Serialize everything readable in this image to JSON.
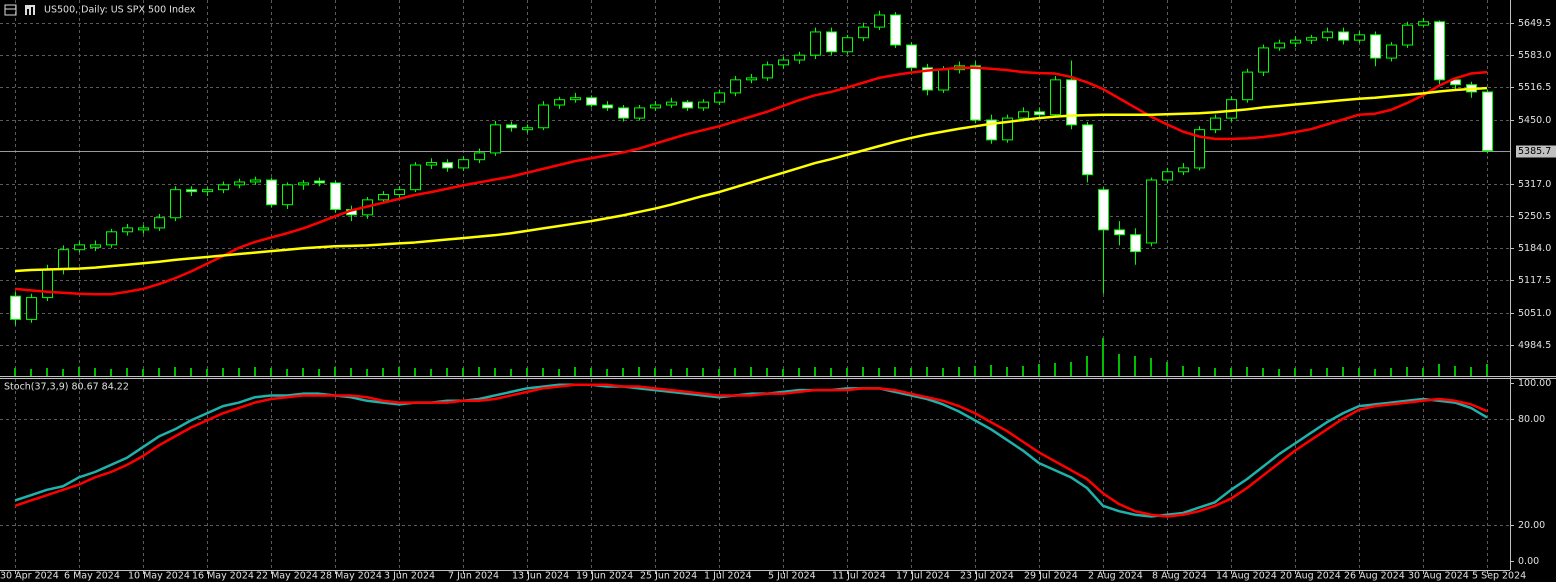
{
  "chart_data": [
    {
      "type": "candlestick",
      "title": "US500, Daily: US SPX 500 Index",
      "categories": [
        "30 Apr 2024",
        null,
        null,
        null,
        "6 May 2024",
        null,
        null,
        null,
        "10 May 2024",
        null,
        null,
        null,
        "16 May 2024",
        null,
        null,
        null,
        "22 May 2024",
        null,
        null,
        null,
        "28 May 2024",
        null,
        null,
        null,
        "3 Jun 2024",
        null,
        null,
        null,
        "7 Jun 2024",
        null,
        null,
        null,
        "13 Jun 2024",
        null,
        null,
        null,
        "19 Jun 2024",
        null,
        null,
        null,
        "25 Jun 2024",
        null,
        null,
        null,
        "1 Jul 2024",
        null,
        null,
        null,
        "5 Jul 2024",
        null,
        null,
        null,
        "11 Jul 2024",
        null,
        null,
        null,
        "17 Jul 2024",
        null,
        null,
        null,
        "23 Jul 2024",
        null,
        null,
        null,
        "29 Jul 2024",
        null,
        null,
        null,
        "2 Aug 2024",
        null,
        null,
        null,
        "8 Aug 2024",
        null,
        null,
        null,
        "14 Aug 2024",
        null,
        null,
        null,
        "20 Aug 2024",
        null,
        null,
        null,
        "26 Aug 2024",
        null,
        null,
        null,
        "30 Aug 2024",
        null,
        null,
        null,
        "5 Sep 2024"
      ],
      "open": [
        5085,
        5037,
        5082,
        5140,
        5181,
        5186,
        5191,
        5218,
        5222,
        5226,
        5247,
        5305,
        5301,
        5305,
        5315,
        5321,
        5325,
        5274,
        5315,
        5323,
        5319,
        5264,
        5253,
        5284,
        5295,
        5305,
        5356,
        5361,
        5350,
        5367,
        5381,
        5439,
        5429,
        5433,
        5480,
        5491,
        5495,
        5480,
        5474,
        5453,
        5474,
        5480,
        5486,
        5474,
        5486,
        5505,
        5532,
        5536,
        5563,
        5573,
        5583,
        5631,
        5590,
        5619,
        5641,
        5666,
        5604,
        5557,
        5511,
        5553,
        5561,
        5449,
        5408,
        5453,
        5466,
        5460,
        5532,
        5439,
        5305,
        5222,
        5212,
        5195,
        5325,
        5342,
        5350,
        5429,
        5453,
        5491,
        5548,
        5598,
        5608,
        5614,
        5619,
        5631,
        5614,
        5625,
        5577,
        5604,
        5645,
        5652,
        5532,
        5522,
        5507
      ],
      "high": [
        5095,
        5090,
        5150,
        5190,
        5198,
        5200,
        5224,
        5234,
        5232,
        5255,
        5312,
        5312,
        5310,
        5322,
        5328,
        5332,
        5330,
        5320,
        5325,
        5330,
        5324,
        5272,
        5290,
        5302,
        5312,
        5362,
        5370,
        5368,
        5374,
        5390,
        5447,
        5446,
        5440,
        5488,
        5497,
        5505,
        5500,
        5488,
        5480,
        5480,
        5488,
        5495,
        5490,
        5492,
        5512,
        5540,
        5544,
        5570,
        5580,
        5590,
        5640,
        5640,
        5625,
        5650,
        5675,
        5672,
        5610,
        5565,
        5560,
        5570,
        5570,
        5460,
        5460,
        5475,
        5475,
        5540,
        5572,
        5445,
        5310,
        5240,
        5225,
        5330,
        5350,
        5360,
        5436,
        5460,
        5498,
        5555,
        5605,
        5615,
        5622,
        5625,
        5640,
        5640,
        5632,
        5632,
        5610,
        5652,
        5660,
        5655,
        5535,
        5528,
        5512
      ],
      "low": [
        5025,
        5030,
        5075,
        5130,
        5175,
        5178,
        5185,
        5210,
        5214,
        5220,
        5240,
        5292,
        5292,
        5298,
        5308,
        5315,
        5268,
        5265,
        5305,
        5312,
        5258,
        5240,
        5245,
        5278,
        5288,
        5300,
        5348,
        5342,
        5344,
        5360,
        5375,
        5425,
        5422,
        5428,
        5472,
        5485,
        5475,
        5468,
        5446,
        5448,
        5468,
        5474,
        5468,
        5468,
        5480,
        5498,
        5525,
        5530,
        5555,
        5565,
        5575,
        5582,
        5585,
        5612,
        5635,
        5598,
        5550,
        5500,
        5505,
        5545,
        5442,
        5400,
        5402,
        5446,
        5452,
        5455,
        5430,
        5320,
        5090,
        5190,
        5150,
        5188,
        5318,
        5335,
        5345,
        5422,
        5446,
        5485,
        5540,
        5592,
        5600,
        5606,
        5612,
        5605,
        5608,
        5560,
        5570,
        5598,
        5640,
        5520,
        5510,
        5495,
        5380
      ],
      "close": [
        5037,
        5082,
        5140,
        5181,
        5191,
        5191,
        5218,
        5226,
        5226,
        5247,
        5305,
        5301,
        5305,
        5315,
        5321,
        5325,
        5274,
        5315,
        5319,
        5319,
        5264,
        5253,
        5284,
        5295,
        5305,
        5356,
        5361,
        5350,
        5367,
        5381,
        5439,
        5433,
        5433,
        5480,
        5491,
        5495,
        5480,
        5474,
        5453,
        5474,
        5480,
        5486,
        5474,
        5486,
        5505,
        5532,
        5536,
        5563,
        5573,
        5583,
        5631,
        5590,
        5619,
        5641,
        5666,
        5604,
        5557,
        5511,
        5553,
        5561,
        5449,
        5408,
        5453,
        5466,
        5460,
        5532,
        5439,
        5336,
        5222,
        5212,
        5177,
        5325,
        5342,
        5350,
        5429,
        5453,
        5491,
        5548,
        5598,
        5608,
        5614,
        5619,
        5631,
        5614,
        5625,
        5577,
        5604,
        5645,
        5652,
        5532,
        5522,
        5507,
        5385.7
      ],
      "volume": [
        8,
        7,
        8,
        7,
        9,
        8,
        7,
        8,
        7,
        8,
        9,
        8,
        7,
        8,
        8,
        9,
        8,
        7,
        8,
        7,
        9,
        8,
        7,
        8,
        9,
        8,
        7,
        8,
        8,
        9,
        8,
        7,
        8,
        8,
        7,
        9,
        8,
        7,
        8,
        9,
        8,
        7,
        8,
        8,
        7,
        8,
        9,
        8,
        7,
        8,
        9,
        8,
        8,
        9,
        8,
        9,
        8,
        9,
        8,
        9,
        10,
        11,
        9,
        10,
        12,
        13,
        14,
        20,
        38,
        22,
        20,
        18,
        14,
        10,
        9,
        8,
        8,
        9,
        8,
        7,
        8,
        7,
        8,
        9,
        8,
        7,
        8,
        9,
        8,
        12,
        10,
        9,
        12
      ],
      "vlim": [
        0,
        100
      ],
      "lines": [
        {
          "color": "#ff0000",
          "values": [
            5100,
            5097,
            5094,
            5092,
            5090,
            5089,
            5089,
            5094,
            5100,
            5110,
            5122,
            5136,
            5152,
            5168,
            5185,
            5197,
            5206,
            5215,
            5225,
            5237,
            5250,
            5262,
            5270,
            5278,
            5286,
            5294,
            5300,
            5307,
            5314,
            5320,
            5326,
            5332,
            5340,
            5348,
            5356,
            5364,
            5370,
            5376,
            5382,
            5390,
            5400,
            5410,
            5420,
            5428,
            5436,
            5446,
            5456,
            5466,
            5478,
            5490,
            5500,
            5507,
            5516,
            5526,
            5536,
            5542,
            5547,
            5551,
            5554,
            5557,
            5557,
            5555,
            5552,
            5548,
            5546,
            5545,
            5538,
            5527,
            5513,
            5494,
            5475,
            5456,
            5440,
            5425,
            5415,
            5410,
            5410,
            5411,
            5414,
            5418,
            5424,
            5430,
            5440,
            5450,
            5460,
            5462,
            5470,
            5484,
            5500,
            5520,
            5535,
            5545,
            5548
          ]
        },
        {
          "color": "#ffff00",
          "values": [
            5137,
            5139,
            5140,
            5141,
            5142,
            5144,
            5147,
            5150,
            5153,
            5156,
            5160,
            5163,
            5166,
            5169,
            5172,
            5175,
            5178,
            5181,
            5184,
            5186,
            5188,
            5189,
            5190,
            5192,
            5194,
            5196,
            5199,
            5202,
            5205,
            5208,
            5211,
            5215,
            5220,
            5225,
            5230,
            5235,
            5240,
            5246,
            5252,
            5259,
            5266,
            5274,
            5283,
            5292,
            5300,
            5310,
            5320,
            5330,
            5340,
            5350,
            5360,
            5368,
            5377,
            5386,
            5395,
            5404,
            5412,
            5419,
            5425,
            5431,
            5436,
            5441,
            5445,
            5449,
            5453,
            5456,
            5458,
            5459,
            5460,
            5460,
            5460,
            5460,
            5461,
            5462,
            5463,
            5465,
            5468,
            5471,
            5475,
            5478,
            5481,
            5484,
            5487,
            5490,
            5493,
            5495,
            5498,
            5501,
            5504,
            5508,
            5511,
            5513,
            5515
          ]
        }
      ],
      "candle_color": "#00ff00",
      "volume_color": "#00c000",
      "ylim": [
        4920,
        5697
      ],
      "yticks": [
        4984.5,
        {
          "value": 5051,
          "label": "5051.0"
        },
        5117.5,
        {
          "value": 5184,
          "label": "5184.0"
        },
        5250.5,
        {
          "value": 5317,
          "label": "5317.0"
        },
        {
          "value": 5450,
          "label": "5450.0"
        },
        5516.5,
        {
          "value": 5583,
          "label": "5583.0"
        },
        5649.5
      ],
      "grid": true
    },
    {
      "type": "line",
      "title": "Stoch(37,3,9) 80.67 84.22",
      "series": [
        {
          "color": "#20b2aa",
          "values": [
            34,
            37,
            40,
            42,
            47,
            50,
            54,
            58,
            64,
            70,
            74,
            79,
            83,
            87,
            89,
            92,
            93,
            93,
            94,
            94,
            93,
            92,
            90,
            89,
            88,
            89,
            89,
            90,
            90,
            91,
            93,
            95,
            97,
            98,
            99,
            99,
            99,
            98,
            98,
            97,
            96,
            95,
            94,
            93,
            92,
            93,
            94,
            94,
            95,
            96,
            96,
            96,
            97,
            97,
            97,
            95,
            93,
            91,
            88,
            84,
            79,
            74,
            68,
            62,
            55,
            51,
            47,
            41,
            31,
            28,
            26,
            25,
            26,
            27,
            30,
            33,
            40,
            46,
            53,
            60,
            66,
            72,
            78,
            83,
            87,
            88,
            89,
            90,
            91,
            90,
            89,
            86,
            80.67
          ]
        },
        {
          "color": "#ff0000",
          "values": [
            31,
            34,
            37,
            40,
            43,
            47,
            50,
            54,
            59,
            65,
            70,
            75,
            79,
            83,
            86,
            89,
            91,
            92,
            93,
            93,
            93,
            93,
            92,
            90,
            89,
            89,
            89,
            89,
            90,
            90,
            91,
            93,
            95,
            97,
            98,
            99,
            99,
            99,
            98,
            98,
            97,
            96,
            95,
            94,
            93,
            93,
            93,
            94,
            94,
            95,
            96,
            96,
            96,
            97,
            97,
            96,
            94,
            92,
            90,
            87,
            83,
            78,
            73,
            67,
            61,
            56,
            51,
            46,
            38,
            32,
            28,
            26,
            25,
            26,
            28,
            31,
            35,
            41,
            48,
            55,
            62,
            68,
            74,
            80,
            85,
            87,
            88,
            89,
            90,
            91,
            90,
            88,
            84.22
          ]
        }
      ],
      "ylim": [
        0,
        100
      ],
      "yticks": [
        {
          "value": 0,
          "label": "0.00"
        },
        {
          "value": 20,
          "label": "20.00"
        },
        {
          "value": 80,
          "label": "80.00"
        },
        {
          "value": 100,
          "label": "100.00"
        }
      ],
      "grid": true
    }
  ]
}
